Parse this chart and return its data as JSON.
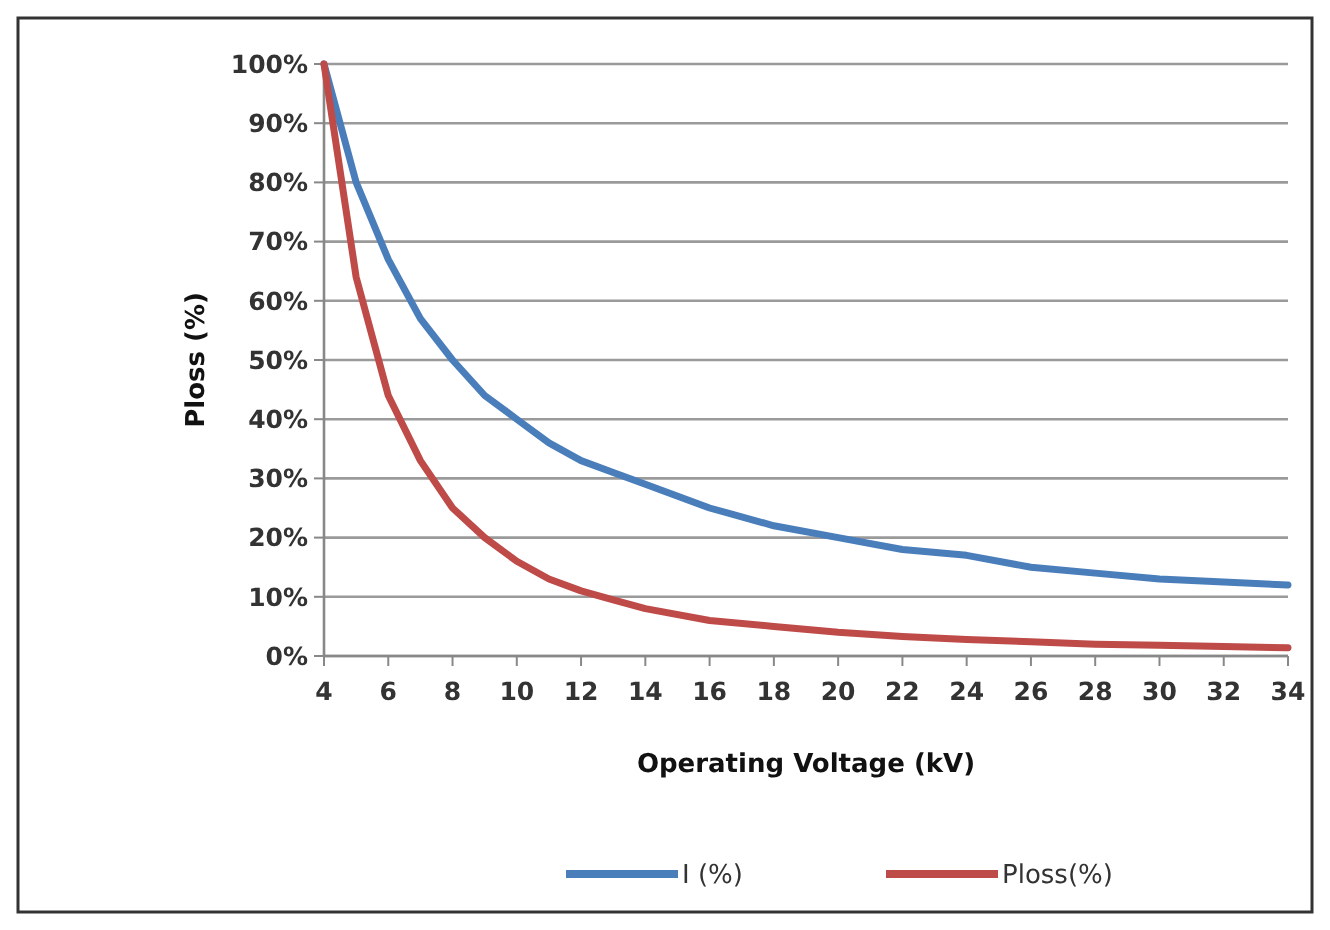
{
  "chart_data": {
    "type": "line",
    "ylabel": "Ploss (%)",
    "xlabel": "Operating Voltage (kV)",
    "x": [
      4,
      5,
      6,
      7,
      8,
      9,
      10,
      11,
      12,
      13,
      14,
      16,
      18,
      20,
      22,
      24,
      26,
      28,
      30,
      32,
      34
    ],
    "series": [
      {
        "name": "I (%)",
        "color": "#4a7ebb",
        "values": [
          100,
          80,
          67,
          57,
          50,
          44,
          40,
          36,
          33,
          31,
          29,
          25,
          22,
          20,
          18,
          17,
          15,
          14,
          13,
          12.5,
          12
        ]
      },
      {
        "name": "Ploss(%)",
        "color": "#be4b48",
        "values": [
          100,
          64,
          44,
          33,
          25,
          20,
          16,
          13,
          11,
          9.5,
          8,
          6,
          5,
          4,
          3.3,
          2.8,
          2.4,
          2,
          1.8,
          1.6,
          1.4
        ]
      }
    ],
    "xlim": [
      4,
      34
    ],
    "xticks": [
      4,
      6,
      8,
      10,
      12,
      14,
      16,
      18,
      20,
      22,
      24,
      26,
      28,
      30,
      32,
      34
    ],
    "ylim": [
      0,
      100
    ],
    "yticks": [
      {
        "value": 0,
        "label": "0%"
      },
      {
        "value": 10,
        "label": "10%"
      },
      {
        "value": 20,
        "label": "20%"
      },
      {
        "value": 30,
        "label": "30%"
      },
      {
        "value": 40,
        "label": "40%"
      },
      {
        "value": 50,
        "label": "50%"
      },
      {
        "value": 60,
        "label": "60%"
      },
      {
        "value": 70,
        "label": "70%"
      },
      {
        "value": 80,
        "label": "80%"
      },
      {
        "value": 90,
        "label": "90%"
      },
      {
        "value": 100,
        "label": "100%"
      }
    ],
    "grid": "y",
    "legend": "bottom",
    "marker": "none",
    "line_style": "solid"
  }
}
